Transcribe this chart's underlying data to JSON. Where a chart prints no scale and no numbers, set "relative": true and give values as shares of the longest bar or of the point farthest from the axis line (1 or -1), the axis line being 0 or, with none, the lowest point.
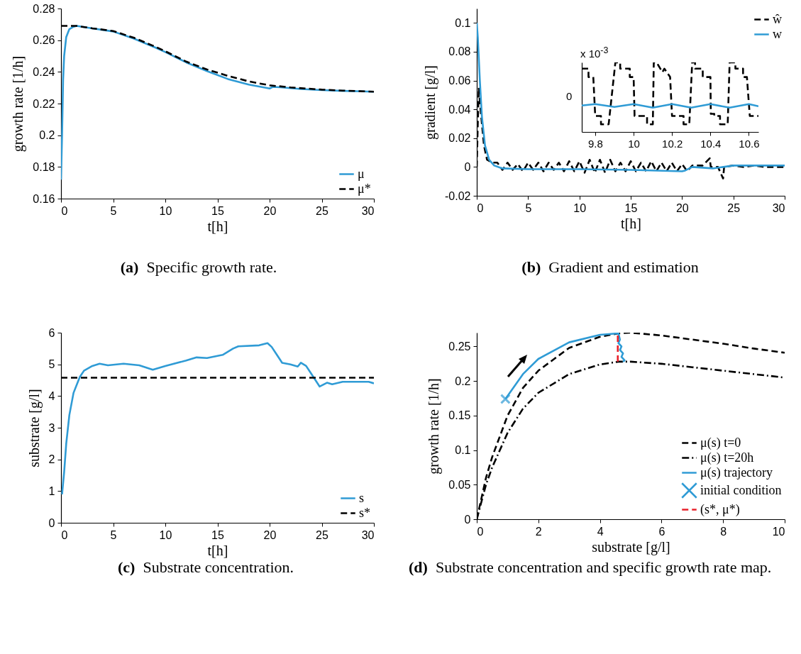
{
  "chart_data": [
    {
      "type": "line",
      "title": "(a) Specific growth rate.",
      "xlabel": "t[h]",
      "ylabel": "growth rate [1/h]",
      "xlim": [
        0,
        30
      ],
      "ylim": [
        0.16,
        0.28
      ],
      "xticks": [
        0,
        5,
        10,
        15,
        20,
        25,
        30
      ],
      "yticks": [
        0.16,
        0.18,
        0.2,
        0.22,
        0.24,
        0.26,
        0.28
      ],
      "legend": "bottom right",
      "series": [
        {
          "name": "μ",
          "color": "#2f9bd5",
          "line_style": "solid",
          "x": [
            0,
            0.1,
            0.2,
            0.3,
            0.5,
            0.8,
            1.2,
            1.5,
            3,
            5,
            7,
            9,
            10,
            12,
            14,
            16,
            18,
            20,
            20.3,
            21,
            23,
            25,
            27,
            30
          ],
          "values": [
            0.172,
            0.2,
            0.235,
            0.25,
            0.262,
            0.267,
            0.2685,
            0.269,
            0.2675,
            0.2655,
            0.261,
            0.2555,
            0.2525,
            0.246,
            0.2405,
            0.2355,
            0.232,
            0.2295,
            0.2305,
            0.2303,
            0.2292,
            0.2285,
            0.228,
            0.2275
          ]
        },
        {
          "name": "μ*",
          "color": "#000000",
          "line_style": "dashed",
          "x": [
            0,
            1.5,
            3,
            5,
            7,
            9,
            10,
            12,
            14,
            16,
            18,
            20,
            22,
            25,
            27,
            30
          ],
          "values": [
            0.269,
            0.269,
            0.2675,
            0.2658,
            0.2615,
            0.256,
            0.253,
            0.2465,
            0.2415,
            0.2375,
            0.234,
            0.2315,
            0.2302,
            0.2288,
            0.2282,
            0.2275
          ]
        }
      ]
    },
    {
      "type": "line",
      "title": "(b) Gradient and estimation",
      "xlabel": "t[h]",
      "ylabel": "gradient [g/l]",
      "xlim": [
        0,
        30
      ],
      "ylim": [
        -0.02,
        0.11
      ],
      "xticks": [
        0,
        5,
        10,
        15,
        20,
        25,
        30
      ],
      "yticks": [
        -0.02,
        0,
        0.02,
        0.04,
        0.06,
        0.08,
        0.1
      ],
      "legend": "top right",
      "series": [
        {
          "name": "ŵ",
          "color": "#000000",
          "line_style": "dashed",
          "x": [
            0,
            0.1,
            0.2,
            0.3,
            0.5,
            0.7,
            1,
            1.5,
            2,
            2.5,
            3,
            3.5,
            4,
            4.5,
            5,
            5.5,
            6,
            6.5,
            7,
            7.5,
            8,
            8.5,
            9,
            9.5,
            10,
            10.5,
            11,
            11.5,
            12,
            12.5,
            13,
            13.5,
            14,
            14.5,
            15,
            15.5,
            16,
            16.5,
            17,
            17.5,
            18,
            18.5,
            19,
            19.5,
            20,
            20.5,
            21,
            22,
            22.7,
            22.8,
            23.5,
            24,
            24.1,
            25,
            26,
            27,
            28,
            30
          ],
          "values": [
            0,
            0.03,
            0.055,
            0.045,
            0.03,
            0.015,
            0.005,
            0.003,
            0.003,
            -0.002,
            0.003,
            -0.002,
            0.002,
            -0.003,
            0.003,
            -0.002,
            0.003,
            -0.003,
            0.003,
            -0.002,
            0.003,
            -0.003,
            0.004,
            -0.003,
            0.004,
            -0.004,
            0.005,
            -0.004,
            0.005,
            -0.004,
            0.005,
            -0.003,
            0.003,
            -0.003,
            0.004,
            -0.003,
            0.003,
            -0.003,
            0.004,
            -0.003,
            0.003,
            -0.003,
            0.003,
            -0.003,
            0.002,
            -0.003,
            0.001,
            0.001,
            0.006,
            0,
            0,
            -0.008,
            0,
            0.001,
            0,
            0.001,
            0,
            0
          ]
        },
        {
          "name": "w",
          "color": "#2f9bd5",
          "line_style": "solid",
          "x": [
            0,
            0.1,
            0.3,
            0.5,
            0.8,
            1.2,
            1.7,
            2.5,
            5,
            10,
            15,
            20,
            20.3,
            21,
            23,
            25,
            30
          ],
          "values": [
            0.1,
            0.09,
            0.06,
            0.035,
            0.015,
            0.005,
            0.001,
            -0.001,
            -0.0015,
            -0.0015,
            -0.002,
            -0.003,
            -0.0025,
            0,
            -0.001,
            0.001,
            0.001
          ]
        }
      ]
    },
    {
      "type": "line",
      "relative": true,
      "annotations": [
        "x 10$^{-3}$",
        "0"
      ],
      "xlim": [
        9.73,
        10.65
      ],
      "xticks": [
        9.8,
        10,
        10.2,
        10.4,
        10.6
      ],
      "legend": false,
      "series": [
        {
          "color": "#000000",
          "line_style": "dashed",
          "x": [
            9.73,
            9.765,
            9.765,
            9.79,
            9.8,
            9.83,
            9.83,
            9.87,
            9.905,
            9.93,
            9.93,
            9.98,
            9.98,
            10.0,
            10.005,
            10.07,
            10.07,
            10.1,
            10.105,
            10.12,
            10.15,
            10.16,
            10.19,
            10.2,
            10.26,
            10.26,
            10.29,
            10.305,
            10.32,
            10.32,
            10.36,
            10.36,
            10.4,
            10.402,
            10.42,
            10.42,
            10.45,
            10.45,
            10.49,
            10.5,
            10.53,
            10.53,
            10.57,
            10.57,
            10.59,
            10.605,
            10.65
          ],
          "values": [
            0.91,
            0.91,
            0.79,
            0.79,
            0.23,
            0.23,
            0.11,
            0.11,
            1.0,
            1.0,
            0.91,
            0.91,
            0.79,
            0.79,
            0.23,
            0.23,
            0.11,
            0.11,
            1.0,
            1.0,
            0.86,
            0.91,
            0.79,
            0.23,
            0.23,
            0.11,
            0.11,
            1.0,
            1.0,
            0.91,
            0.91,
            0.79,
            0.79,
            0.26,
            0.26,
            0.23,
            0.23,
            0.11,
            0.11,
            1.0,
            1.0,
            0.91,
            0.91,
            0.79,
            0.79,
            0.23,
            0.23
          ]
        },
        {
          "color": "#2f9bd5",
          "line_style": "solid",
          "x": [
            9.73,
            9.8,
            9.9,
            10.0,
            10.1,
            10.2,
            10.3,
            10.4,
            10.5,
            10.6,
            10.65
          ],
          "values": [
            0.38,
            0.4,
            0.36,
            0.4,
            0.35,
            0.4,
            0.35,
            0.4,
            0.35,
            0.4,
            0.37
          ]
        }
      ]
    },
    {
      "type": "line",
      "title": "(c) Substrate concentration.",
      "xlabel": "t[h]",
      "ylabel": "substrate [g/l]",
      "xlim": [
        0,
        30
      ],
      "ylim": [
        0,
        6
      ],
      "xticks": [
        0,
        5,
        10,
        15,
        20,
        25,
        30
      ],
      "yticks": [
        0,
        1,
        2,
        3,
        4,
        5,
        6
      ],
      "legend": "bottom right",
      "series": [
        {
          "name": "s",
          "color": "#2f9bd5",
          "line_style": "solid",
          "x": [
            0.1,
            0.3,
            0.5,
            0.8,
            1.2,
            1.8,
            2.2,
            3,
            3.7,
            4.5,
            6,
            7.5,
            8.8,
            10,
            12,
            13,
            14,
            15.5,
            16.5,
            17,
            19,
            19.8,
            20.2,
            20.7,
            21.2,
            22,
            22.7,
            23,
            23.5,
            24,
            24.5,
            24.8,
            25.5,
            26,
            27,
            29.5,
            30
          ],
          "values": [
            0.9,
            1.6,
            2.5,
            3.4,
            4.1,
            4.6,
            4.8,
            4.95,
            5.02,
            4.97,
            5.02,
            4.97,
            4.83,
            4.95,
            5.12,
            5.22,
            5.2,
            5.3,
            5.5,
            5.57,
            5.6,
            5.67,
            5.55,
            5.3,
            5.05,
            5.0,
            4.93,
            5.05,
            4.95,
            4.7,
            4.45,
            4.3,
            4.42,
            4.37,
            4.45,
            4.45,
            4.4
          ]
        },
        {
          "name": "s*",
          "color": "#000000",
          "line_style": "dashed",
          "x": [
            0,
            30
          ],
          "values": [
            4.58,
            4.58
          ]
        }
      ]
    },
    {
      "type": "line",
      "title": "(d) Substrate concentration and specific growth rate map.",
      "xlabel": "substrate [g/l]",
      "ylabel": "growth rate [1/h]",
      "xlim": [
        0,
        10
      ],
      "ylim": [
        0,
        0.27
      ],
      "xticks": [
        0,
        2,
        4,
        6,
        8,
        10
      ],
      "yticks": [
        0,
        0.05,
        0.1,
        0.15,
        0.2,
        0.25
      ],
      "legend": "bottom right",
      "series": [
        {
          "name": "μ(s)  t=0",
          "color": "#000000",
          "line_style": "dashed",
          "x": [
            0,
            0.3,
            0.5,
            1,
            1.5,
            2,
            3,
            4,
            4.6,
            5,
            6,
            7,
            8,
            9,
            10
          ],
          "values": [
            0,
            0.06,
            0.09,
            0.15,
            0.19,
            0.215,
            0.248,
            0.264,
            0.269,
            0.27,
            0.266,
            0.26,
            0.254,
            0.247,
            0.241
          ]
        },
        {
          "name": "μ(s)  t=20h",
          "color": "#000000",
          "line_style": "dashdot",
          "x": [
            0,
            0.3,
            0.5,
            1,
            1.5,
            2,
            3,
            4,
            4.6,
            5,
            6,
            7,
            8,
            9,
            10
          ],
          "values": [
            0,
            0.05,
            0.075,
            0.125,
            0.16,
            0.183,
            0.21,
            0.224,
            0.228,
            0.228,
            0.225,
            0.22,
            0.215,
            0.21,
            0.205
          ]
        },
        {
          "name": "μ(s) trajectory",
          "color": "#2f9bd5",
          "line_style": "solid",
          "x": [
            0.93,
            1.5,
            2,
            3,
            4,
            4.6,
            4.65,
            4.6,
            4.7,
            4.65,
            4.75,
            4.7,
            4.8,
            4.75
          ],
          "values": [
            0.174,
            0.21,
            0.232,
            0.256,
            0.267,
            0.269,
            0.26,
            0.255,
            0.25,
            0.245,
            0.24,
            0.235,
            0.23,
            0.228
          ]
        },
        {
          "name": "initial condition",
          "type": "scatter",
          "marker": "cross",
          "color": "#2f9bd5",
          "x": [
            0.93
          ],
          "values": [
            0.174
          ]
        },
        {
          "name": "(s*, μ*)",
          "color": "#e8202a",
          "line_style": "dashed",
          "x": [
            4.58,
            4.58
          ],
          "values": [
            0.228,
            0.269
          ]
        }
      ]
    }
  ]
}
